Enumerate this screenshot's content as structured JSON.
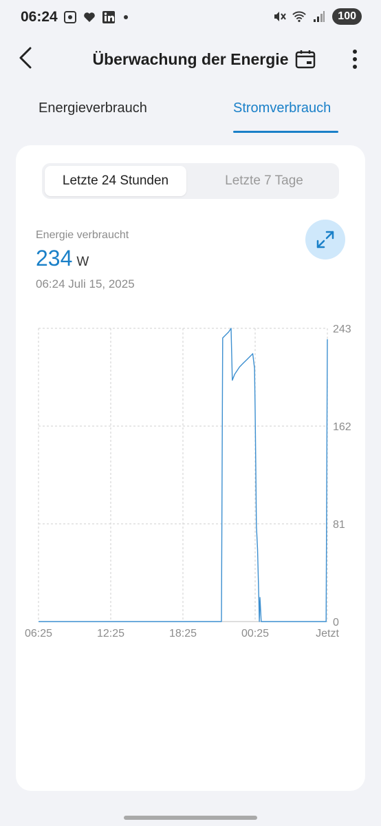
{
  "status_bar": {
    "time": "06:24",
    "battery": "100",
    "left_icons": [
      "screenshot-icon",
      "heart-icon",
      "linkedin-icon",
      "dot-icon"
    ],
    "right_icons": [
      "mute-icon",
      "wifi-icon",
      "signal-icon"
    ]
  },
  "header": {
    "title": "Überwachung der Energie"
  },
  "tabs": [
    {
      "label": "Energieverbrauch",
      "active": false
    },
    {
      "label": "Stromverbrauch",
      "active": true
    }
  ],
  "segment": {
    "options": [
      "Letzte 24 Stunden",
      "Letzte 7 Tage"
    ],
    "selected": 0
  },
  "reading": {
    "label": "Energie verbraucht",
    "value": "234",
    "unit": "W",
    "timestamp": "06:24  Juli 15, 2025"
  },
  "colors": {
    "accent": "#1a80c8",
    "line": "#3c8fd0"
  },
  "chart_data": {
    "type": "line",
    "x_ticks": [
      "06:25",
      "12:25",
      "18:25",
      "00:25",
      "Jetzt"
    ],
    "y_ticks": [
      "243",
      "162",
      "81",
      "0"
    ],
    "ylim": [
      0,
      243
    ],
    "xlim_hours": [
      0,
      24
    ],
    "grid": true,
    "series": [
      {
        "points": [
          [
            0,
            0
          ],
          [
            15.2,
            0
          ],
          [
            15.3,
            235
          ],
          [
            15.8,
            240
          ],
          [
            16.0,
            243
          ],
          [
            16.1,
            200
          ],
          [
            16.3,
            205
          ],
          [
            16.7,
            211
          ],
          [
            17.0,
            214
          ],
          [
            17.3,
            217
          ],
          [
            17.5,
            219
          ],
          [
            17.7,
            221
          ],
          [
            17.8,
            222
          ],
          [
            17.95,
            210
          ],
          [
            18.0,
            175
          ],
          [
            18.05,
            130
          ],
          [
            18.1,
            80
          ],
          [
            18.2,
            60
          ],
          [
            18.3,
            20
          ],
          [
            18.35,
            0
          ],
          [
            18.4,
            20
          ],
          [
            18.5,
            0
          ],
          [
            23.9,
            0
          ],
          [
            24.0,
            234
          ]
        ]
      }
    ]
  }
}
